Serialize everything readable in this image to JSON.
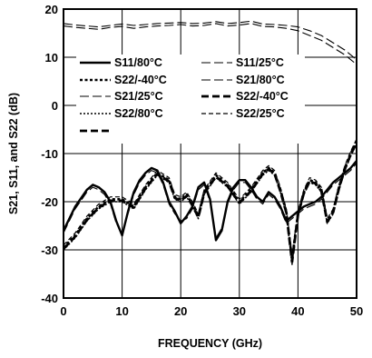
{
  "chart_data": {
    "type": "line",
    "xlabel": "FREQUENCY (GHz)",
    "ylabel": "S21, S11, and S22 (dB)",
    "xlim": [
      0,
      50
    ],
    "ylim": [
      -40,
      20
    ],
    "xticks": [
      0,
      10,
      20,
      30,
      40,
      50
    ],
    "yticks": [
      -40,
      -30,
      -20,
      -10,
      0,
      10,
      20
    ],
    "grid": true,
    "legend_position": "inside-top-left",
    "series": [
      {
        "name": "S11/80°C",
        "group": "S11",
        "style": "solid",
        "color": "#000000",
        "x": [
          0,
          2,
          4,
          5,
          6,
          7,
          8,
          9,
          10,
          11,
          12,
          13,
          14,
          15,
          16,
          17,
          18,
          19,
          20,
          21,
          22,
          23,
          24,
          25,
          26,
          27,
          28,
          29,
          30,
          31,
          32,
          33,
          34,
          35,
          36,
          37,
          38,
          39,
          40,
          41,
          42,
          43,
          44,
          45,
          46,
          47,
          48,
          49,
          50
        ],
        "values": [
          -26,
          -21,
          -17.5,
          -16.5,
          -17,
          -18,
          -20,
          -24,
          -27,
          -22,
          -18,
          -15.5,
          -14,
          -13,
          -13.5,
          -16,
          -20,
          -22,
          -24.5,
          -23,
          -21,
          -17,
          -16,
          -19.5,
          -28,
          -26,
          -20,
          -17,
          -15.5,
          -15.5,
          -17,
          -19,
          -20,
          -18,
          -19,
          -21,
          -24,
          -23,
          -22,
          -21,
          -20.5,
          -20,
          -19,
          -17.5,
          -16,
          -15,
          -14,
          -13,
          -11.5
        ]
      },
      {
        "name": "S11/25°C",
        "group": "S11",
        "style": "longdash-thin",
        "color": "#000000",
        "x": [
          0,
          2,
          4,
          5,
          6,
          7,
          8,
          9,
          10,
          11,
          12,
          13,
          14,
          15,
          16,
          17,
          18,
          19,
          20,
          21,
          22,
          23,
          24,
          25,
          26,
          27,
          28,
          29,
          30,
          31,
          32,
          33,
          34,
          35,
          36,
          37,
          38,
          39,
          40,
          41,
          42,
          43,
          44,
          45,
          46,
          47,
          48,
          49,
          50
        ],
        "values": [
          -26.5,
          -21.5,
          -18,
          -17,
          -17.5,
          -18.5,
          -20.5,
          -24.5,
          -26.5,
          -22.5,
          -18.5,
          -16,
          -14.5,
          -13.5,
          -14,
          -16.5,
          -20.5,
          -22.5,
          -24,
          -23.5,
          -21.5,
          -17.5,
          -16.5,
          -20,
          -27.5,
          -25.5,
          -20.5,
          -17.5,
          -16,
          -16,
          -17.5,
          -19.5,
          -20.5,
          -18.5,
          -19.5,
          -21.5,
          -24.5,
          -23.5,
          -22.5,
          -21.5,
          -21,
          -20.5,
          -19.5,
          -18,
          -16.5,
          -15.5,
          -14.5,
          -13.5,
          -12
        ]
      },
      {
        "name": "S21/80°C",
        "group": "S21",
        "style": "longdash-thin",
        "color": "#000000",
        "x": [
          0,
          2,
          4,
          6,
          8,
          10,
          12,
          14,
          16,
          18,
          20,
          22,
          24,
          26,
          28,
          30,
          32,
          34,
          36,
          38,
          40,
          42,
          44,
          46,
          48,
          50
        ],
        "values": [
          16.5,
          16.2,
          16,
          15.8,
          16.2,
          16.4,
          16,
          16.3,
          16.5,
          16.6,
          16.8,
          16.5,
          16.6,
          17,
          16.5,
          16.7,
          17,
          16.4,
          16.3,
          16,
          15.5,
          14.5,
          13.5,
          12,
          10.5,
          8.5
        ]
      },
      {
        "name": "S21/25°C",
        "group": "S21",
        "style": "longdash-thin",
        "color": "#000000",
        "x": [
          0,
          2,
          4,
          6,
          8,
          10,
          12,
          14,
          16,
          18,
          20,
          22,
          24,
          26,
          28,
          30,
          32,
          34,
          36,
          38,
          40,
          42,
          44,
          46,
          48,
          50
        ],
        "values": [
          17,
          16.7,
          16.5,
          16.3,
          16.6,
          16.9,
          16.6,
          16.8,
          17,
          17.1,
          17.2,
          17,
          17.1,
          17.4,
          17,
          17.2,
          17.5,
          16.9,
          16.8,
          16.6,
          16.3,
          15.5,
          14.5,
          13,
          11.5,
          9.5
        ]
      },
      {
        "name": "S22/-40°C",
        "group": "S22",
        "style": "dotted",
        "color": "#000000",
        "x": [
          0,
          2,
          4,
          6,
          8,
          10,
          12,
          14,
          16,
          18,
          19,
          20,
          21,
          22,
          23,
          24,
          26,
          28,
          30,
          32,
          34,
          35,
          36,
          37,
          38,
          39,
          40,
          41,
          42,
          43,
          44,
          45,
          46,
          47,
          48,
          49,
          50
        ],
        "values": [
          -29.5,
          -27,
          -23.5,
          -21,
          -19.5,
          -19.5,
          -21,
          -17,
          -14,
          -15.5,
          -19,
          -19.5,
          -18.5,
          -20.5,
          -23,
          -18,
          -14.5,
          -16.5,
          -20,
          -17.5,
          -14,
          -13,
          -14,
          -17.5,
          -22,
          -32,
          -22.5,
          -18,
          -15.5,
          -16,
          -17.5,
          -24,
          -22,
          -17,
          -13,
          -10,
          -7.5
        ]
      },
      {
        "name": "S22/80°C",
        "group": "S22",
        "style": "dotted-thin",
        "color": "#000000",
        "x": [
          0,
          2,
          4,
          6,
          8,
          10,
          12,
          14,
          16,
          18,
          19,
          20,
          21,
          22,
          23,
          24,
          26,
          28,
          30,
          32,
          34,
          35,
          36,
          37,
          38,
          39,
          40,
          41,
          42,
          43,
          44,
          45,
          46,
          47,
          48,
          49,
          50
        ],
        "values": [
          -30,
          -27.5,
          -24,
          -21.5,
          -20,
          -20,
          -21.5,
          -17.5,
          -14.5,
          -16,
          -19.5,
          -20,
          -19,
          -21,
          -23.5,
          -18.5,
          -15,
          -17,
          -20.5,
          -18,
          -14.5,
          -13.5,
          -14.5,
          -18,
          -22.5,
          -33,
          -23,
          -18.5,
          -16,
          -16.5,
          -18,
          -24.5,
          -22.5,
          -17.5,
          -13.5,
          -10.5,
          -8
        ]
      },
      {
        "name": "S22/25°C",
        "group": "S22",
        "style": "dashed-thin",
        "color": "#000000",
        "x": [
          0,
          2,
          4,
          6,
          8,
          10,
          12,
          14,
          16,
          18,
          19,
          20,
          21,
          22,
          23,
          24,
          26,
          28,
          30,
          32,
          34,
          35,
          36,
          37,
          38,
          39,
          40,
          41,
          42,
          43,
          44,
          45,
          46,
          47,
          48,
          49,
          50
        ],
        "values": [
          -29,
          -26.5,
          -23,
          -20.5,
          -19,
          -19,
          -20.5,
          -16.5,
          -13.5,
          -15,
          -18.5,
          -19,
          -18,
          -20,
          -22.5,
          -17.5,
          -14,
          -16,
          -19.5,
          -17,
          -13.5,
          -12.5,
          -13.5,
          -17,
          -21.5,
          -31,
          -22,
          -17.5,
          -15,
          -15.5,
          -17,
          -23.5,
          -21.5,
          -16.5,
          -12.5,
          -9.5,
          -7
        ]
      },
      {
        "name": "S22/-40°C",
        "group": "S22",
        "style": "heavydash",
        "color": "#000000",
        "x": [
          0,
          2,
          4,
          6,
          8,
          10,
          12,
          14,
          16,
          18,
          19,
          20,
          21,
          22,
          23,
          24,
          26,
          28,
          30,
          32,
          34,
          35,
          36,
          37,
          38,
          39,
          40,
          41,
          42,
          43,
          44,
          45,
          46,
          47,
          48,
          49,
          50
        ],
        "values": [
          -29.8,
          -27.2,
          -23.8,
          -21.2,
          -19.8,
          -19.8,
          -21.2,
          -17.2,
          -14.2,
          -15.8,
          -19.2,
          -19.8,
          -18.8,
          -20.8,
          -23.2,
          -18.2,
          -14.8,
          -16.8,
          -20.2,
          -17.8,
          -14.2,
          -13.2,
          -14.2,
          -17.8,
          -22.2,
          -32.5,
          -22.8,
          -18.2,
          -15.8,
          -16.2,
          -17.8,
          -24.2,
          -22.2,
          -17.2,
          -13.2,
          -10.2,
          -7.8
        ]
      }
    ]
  }
}
